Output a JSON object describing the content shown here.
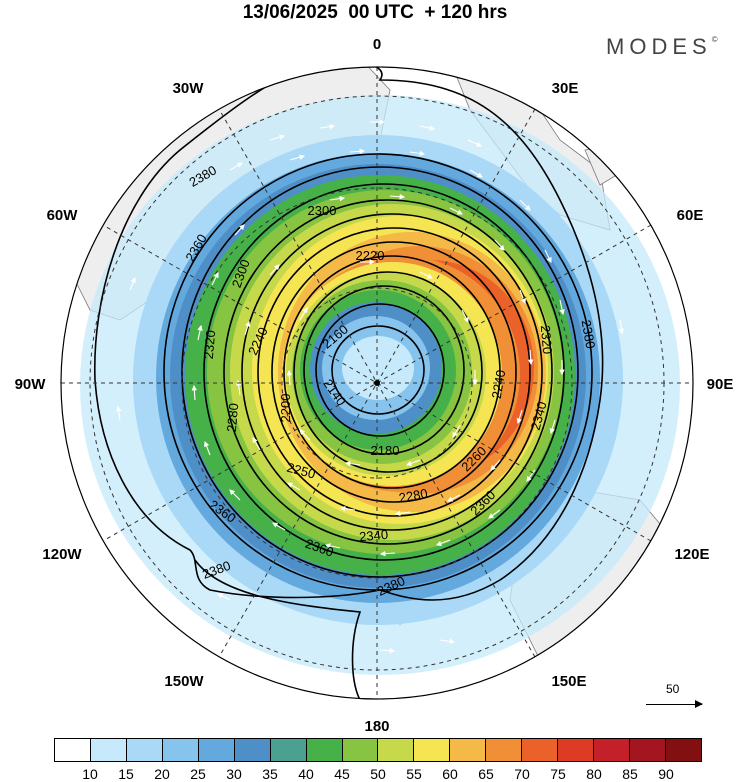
{
  "title": "13/06/2025  00 UTC  + 120 hrs",
  "brand": "MODES",
  "brand_mark": "©",
  "longitude_labels": [
    "0",
    "30E",
    "60E",
    "90E",
    "120E",
    "150E",
    "180",
    "150W",
    "120W",
    "90W",
    "60W",
    "30W"
  ],
  "contour_labels": [
    "2380",
    "2360",
    "2300",
    "2220",
    "2300",
    "2320",
    "2240",
    "2160",
    "2140",
    "2200",
    "2280",
    "2180",
    "2250",
    "2280",
    "2260",
    "2240",
    "2320",
    "2340",
    "2380",
    "2360",
    "2340",
    "2360",
    "2380",
    "2380",
    "2360"
  ],
  "vector_scale": {
    "value": "50"
  },
  "colorbar": {
    "colors": [
      "#ffffff",
      "#c6eafb",
      "#a9d9f6",
      "#86c4ee",
      "#64a9de",
      "#4f8fc8",
      "#4ba08f",
      "#46b149",
      "#86c441",
      "#c6d94b",
      "#f6e552",
      "#f5b947",
      "#f18f37",
      "#ea6229",
      "#de3b24",
      "#c3202a",
      "#a4161f",
      "#821010"
    ],
    "labels": [
      "10",
      "15",
      "20",
      "25",
      "30",
      "35",
      "40",
      "45",
      "50",
      "55",
      "60",
      "65",
      "70",
      "75",
      "80",
      "85",
      "90"
    ]
  },
  "colors": {
    "land": "#eeeeee",
    "coast": "#7a7a7a",
    "contour": "#000000",
    "grid": "#333333"
  }
}
